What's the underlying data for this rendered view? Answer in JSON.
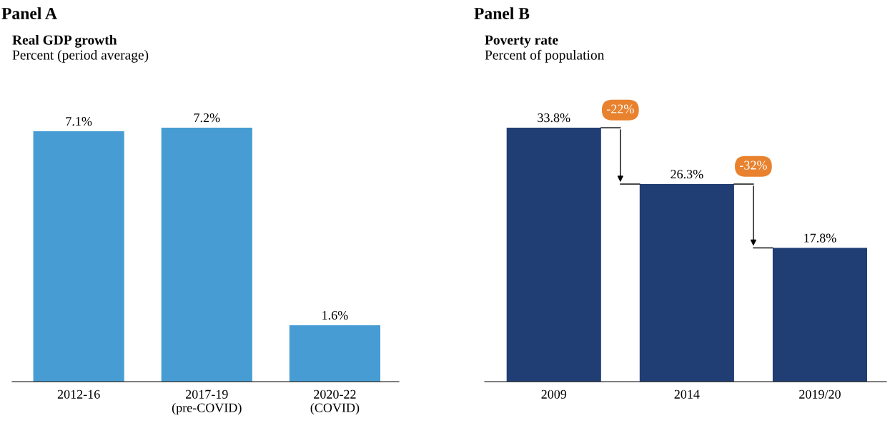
{
  "chart_data": [
    {
      "type": "bar",
      "title": "Real GDP growth",
      "subtitle": "Percent (period average)",
      "annotations": [
        "Panel A"
      ],
      "categories": [
        "2012-16",
        "2017-19\n(pre-COVID)",
        "2020-22\n(COVID)"
      ],
      "values": [
        7.1,
        7.2,
        1.6
      ],
      "value_labels": [
        "7.1%",
        "7.2%",
        "1.6%"
      ],
      "color": "#479dd3"
    },
    {
      "type": "bar",
      "title": "Poverty rate",
      "subtitle": "Percent of population",
      "annotations": [
        "Panel B",
        "-22%",
        "-32%"
      ],
      "categories": [
        "2009",
        "2014",
        "2019/20"
      ],
      "values": [
        33.8,
        26.3,
        17.8
      ],
      "value_labels": [
        "33.8%",
        "26.3%",
        "17.8%"
      ],
      "color": "#203e74"
    }
  ]
}
